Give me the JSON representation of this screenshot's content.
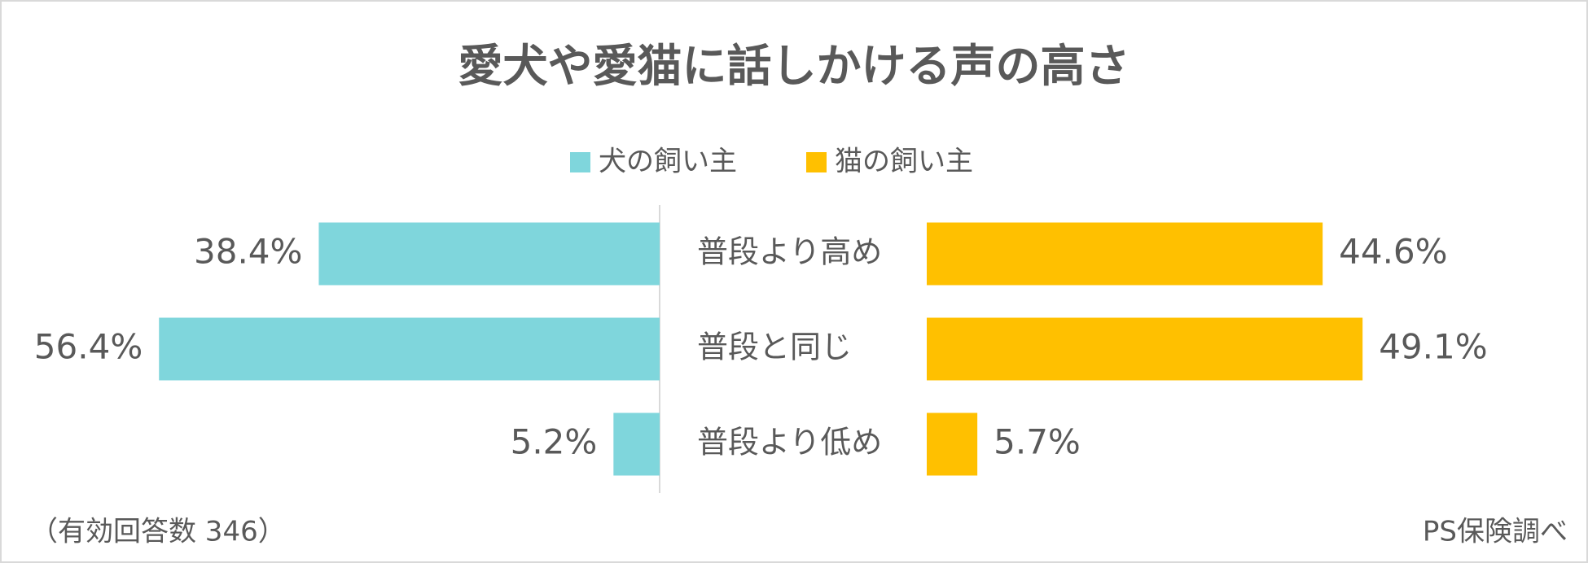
{
  "chart_data": {
    "type": "bar",
    "title": "愛犬や愛猫に話しかける声の高さ",
    "legend": "top",
    "categories": [
      "普段より高め",
      "普段と同じ",
      "普段より低め"
    ],
    "series": [
      {
        "name": "犬の飼い主",
        "color": "#7fd6dc",
        "values": [
          38.4,
          56.4,
          5.2
        ],
        "value_labels": [
          "38.4%",
          "56.4%",
          "5.2%"
        ]
      },
      {
        "name": "猫の飼い主",
        "color": "#ffc000",
        "values": [
          44.6,
          49.1,
          5.7
        ],
        "value_labels": [
          "44.6%",
          "49.1%",
          "5.7%"
        ]
      }
    ],
    "note": "（有効回答数 346）",
    "source": "PS保険調べ"
  }
}
